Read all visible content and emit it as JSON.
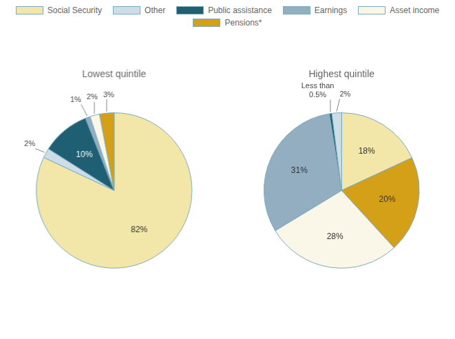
{
  "chart_data": [
    {
      "type": "pie",
      "title": "Lowest quintile",
      "categories": [
        "Social Security",
        "Other",
        "Public assistance",
        "Earnings",
        "Asset income",
        "Pensions*"
      ],
      "values": [
        82,
        2,
        10,
        1,
        2,
        3
      ],
      "value_labels": [
        "82%",
        "2%",
        "10%",
        "1%",
        "2%",
        "3%"
      ],
      "colors": [
        "#f2e6a8",
        "#ccdde8",
        "#1e5f74",
        "#93aec0",
        "#faf6e8",
        "#d4a017"
      ],
      "data_labels": true,
      "legend": "top"
    },
    {
      "type": "pie",
      "title": "Highest quintile",
      "categories": [
        "Social Security",
        "Pensions*",
        "Asset income",
        "Earnings",
        "Public assistance",
        "Other"
      ],
      "values": [
        18,
        20,
        28,
        31,
        0.5,
        2
      ],
      "value_labels": [
        "18%",
        "20%",
        "28%",
        "31%",
        "Less than\n0.5%",
        "2%"
      ],
      "colors": [
        "#f2e6a8",
        "#d4a017",
        "#faf6e8",
        "#93aec0",
        "#1e5f74",
        "#ccdde8"
      ],
      "data_labels": true,
      "legend": "top"
    }
  ]
}
